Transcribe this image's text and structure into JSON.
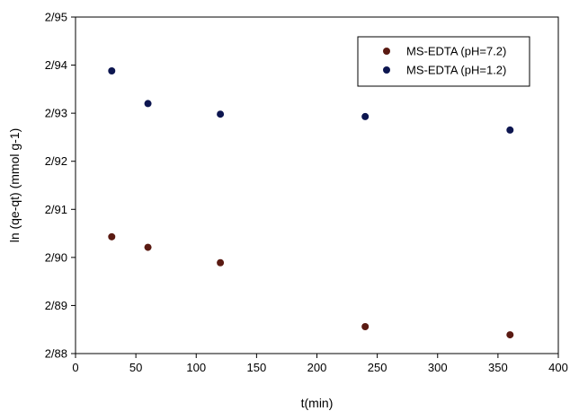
{
  "chart_data": {
    "type": "scatter",
    "title": "",
    "xlabel": "t(min)",
    "ylabel": "ln (qe-qt) (mmol g-1)",
    "xlim": [
      0,
      400
    ],
    "ylim": [
      2.88,
      2.95
    ],
    "x_ticks": [
      {
        "value": 0,
        "label": "0"
      },
      {
        "value": 50,
        "label": "50"
      },
      {
        "value": 100,
        "label": "100"
      },
      {
        "value": 150,
        "label": "150"
      },
      {
        "value": 200,
        "label": "200"
      },
      {
        "value": 250,
        "label": "250"
      },
      {
        "value": 300,
        "label": "300"
      },
      {
        "value": 350,
        "label": "350"
      },
      {
        "value": 400,
        "label": "400"
      }
    ],
    "y_ticks": [
      {
        "value": 2.88,
        "label": "2/88"
      },
      {
        "value": 2.89,
        "label": "2/89"
      },
      {
        "value": 2.9,
        "label": "2/90"
      },
      {
        "value": 2.91,
        "label": "2/91"
      },
      {
        "value": 2.92,
        "label": "2/92"
      },
      {
        "value": 2.93,
        "label": "2/93"
      },
      {
        "value": 2.94,
        "label": "2/94"
      },
      {
        "value": 2.95,
        "label": "2/95"
      }
    ],
    "grid": false,
    "legend_position": "top-right",
    "series": [
      {
        "name": "MS-EDTA (pH=7.2)",
        "color": "#5a1a12",
        "x": [
          30,
          60,
          120,
          240,
          360
        ],
        "y": [
          2.9043,
          2.9021,
          2.8989,
          2.8856,
          2.8839
        ]
      },
      {
        "name": "MS-EDTA (pH=1.2)",
        "color": "#0d1650",
        "x": [
          30,
          60,
          120,
          240,
          360
        ],
        "y": [
          2.9388,
          2.932,
          2.9298,
          2.9293,
          2.9265
        ]
      }
    ]
  }
}
